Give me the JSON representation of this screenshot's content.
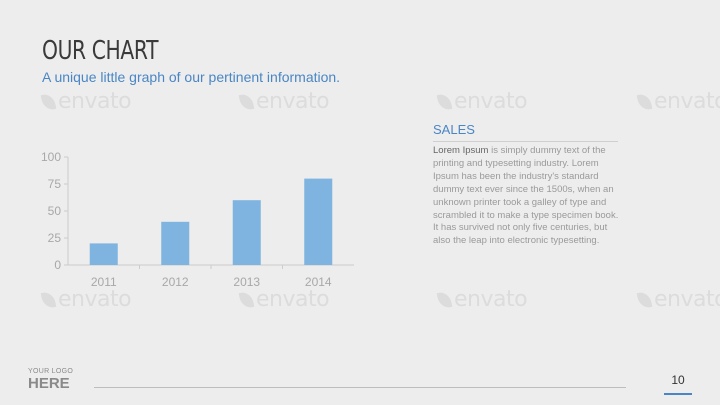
{
  "slide": {
    "title": "OUR CHART",
    "subtitle": "A unique little graph of our pertinent information.",
    "page_number": "10"
  },
  "watermark": {
    "text": "envato"
  },
  "sales": {
    "title": "SALES",
    "lead": "Lorem Ipsum",
    "body": " is simply dummy text of the printing and typesetting industry. Lorem Ipsum has been the industry's standard dummy text ever since the 1500s, when an unknown printer took a galley of type and scrambled it to make a type specimen book. It has survived not only five centuries, but also the leap into electronic typesetting."
  },
  "logo": {
    "line1": "YOUR LOGO",
    "line2": "HERE"
  },
  "colors": {
    "accent": "#4a86c5",
    "bar": "#7fb3e0",
    "background": "#ededed"
  },
  "chart_data": {
    "type": "bar",
    "categories": [
      "2011",
      "2012",
      "2013",
      "2014"
    ],
    "values": [
      20,
      40,
      60,
      80
    ],
    "ylim": [
      0,
      100
    ],
    "yticks": [
      0,
      25,
      50,
      75,
      100
    ],
    "title": "",
    "xlabel": "",
    "ylabel": "",
    "grid": false,
    "legend": "none"
  }
}
